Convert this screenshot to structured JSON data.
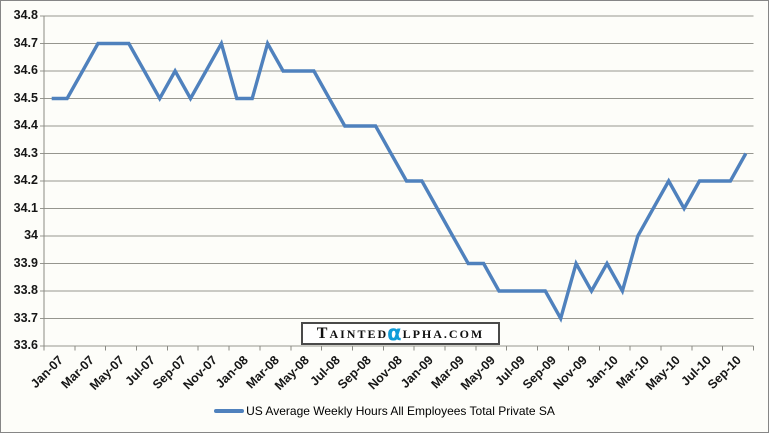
{
  "chart_data": {
    "type": "line",
    "series_name": "US Average Weekly Hours All Employees Total Private SA",
    "x": [
      "Jan-07",
      "Feb-07",
      "Mar-07",
      "Apr-07",
      "May-07",
      "Jun-07",
      "Jul-07",
      "Aug-07",
      "Sep-07",
      "Oct-07",
      "Nov-07",
      "Dec-07",
      "Jan-08",
      "Feb-08",
      "Mar-08",
      "Apr-08",
      "May-08",
      "Jun-08",
      "Jul-08",
      "Aug-08",
      "Sep-08",
      "Oct-08",
      "Nov-08",
      "Dec-08",
      "Jan-09",
      "Feb-09",
      "Mar-09",
      "Apr-09",
      "May-09",
      "Jun-09",
      "Jul-09",
      "Aug-09",
      "Sep-09",
      "Oct-09",
      "Nov-09",
      "Dec-09",
      "Jan-10",
      "Feb-10",
      "Mar-10",
      "Apr-10",
      "May-10",
      "Jun-10",
      "Jul-10",
      "Aug-10",
      "Sep-10",
      "Oct-10"
    ],
    "values": [
      34.5,
      34.5,
      34.6,
      34.7,
      34.7,
      34.7,
      34.6,
      34.5,
      34.6,
      34.5,
      34.6,
      34.7,
      34.5,
      34.5,
      34.7,
      34.6,
      34.6,
      34.6,
      34.5,
      34.4,
      34.4,
      34.4,
      34.3,
      34.2,
      34.2,
      34.1,
      34.0,
      33.9,
      33.9,
      33.8,
      33.8,
      33.8,
      33.8,
      33.7,
      33.9,
      33.8,
      33.9,
      33.8,
      34.0,
      34.1,
      34.2,
      34.1,
      34.2,
      34.2,
      34.2,
      34.3
    ],
    "x_tick_labels": [
      "Jan-07",
      "Mar-07",
      "May-07",
      "Jul-07",
      "Sep-07",
      "Nov-07",
      "Jan-08",
      "Mar-08",
      "May-08",
      "Jul-08",
      "Sep-08",
      "Nov-08",
      "Jan-09",
      "Mar-09",
      "May-09",
      "Jul-09",
      "Sep-09",
      "Nov-09",
      "Jan-10",
      "Mar-10",
      "May-10",
      "Jul-10",
      "Sep-10"
    ],
    "y_ticks": [
      "34.8",
      "34.7",
      "34.6",
      "34.5",
      "34.4",
      "34.3",
      "34.2",
      "34.1",
      "34",
      "33.9",
      "33.8",
      "33.7",
      "33.6"
    ],
    "ylim": [
      33.6,
      34.8
    ],
    "grid": true,
    "legend_position": "bottom-center",
    "line_color": "#4F81BD"
  },
  "watermark": {
    "t": "T",
    "ainted": "AINTED",
    "alpha": "α",
    "rest": "LPHA.COM",
    "alpha_color": "#0f9cd8"
  }
}
